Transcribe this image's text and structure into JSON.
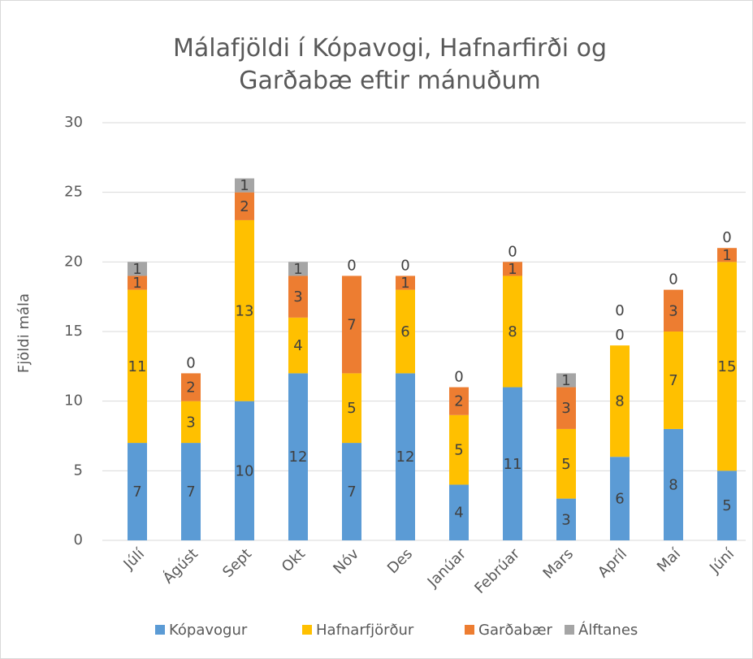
{
  "chart_data": {
    "type": "stacked_bar",
    "title": "Málafjöldi í Kópavogi, Hafnarfirði og Garðabæ eftir mánuðum",
    "y_label": "Fjöldi mála",
    "categories": [
      "Júlí",
      "Ágúst",
      "Sept",
      "Okt",
      "Nóv",
      "Des",
      "Janúar",
      "Febrúar",
      "Mars",
      "Apríl",
      "Maí",
      "Júní"
    ],
    "series": [
      {
        "name": "Kópavogur",
        "color": "#5b9bd5",
        "values": [
          7,
          7,
          10,
          12,
          7,
          12,
          4,
          11,
          3,
          6,
          8,
          5
        ]
      },
      {
        "name": "Hafnarfjörður",
        "color": "#ffc000",
        "values": [
          11,
          3,
          13,
          4,
          5,
          6,
          5,
          8,
          5,
          8,
          7,
          15
        ]
      },
      {
        "name": "Garðabær",
        "color": "#ed7d31",
        "values": [
          1,
          2,
          2,
          3,
          7,
          1,
          2,
          1,
          3,
          0,
          3,
          1
        ]
      },
      {
        "name": "Álftanes",
        "color": "#a5a5a5",
        "values": [
          1,
          0,
          1,
          1,
          0,
          0,
          0,
          0,
          1,
          0,
          0,
          0
        ]
      }
    ],
    "ylim": [
      0,
      30
    ],
    "yticks": [
      0,
      5,
      10,
      15,
      20,
      25,
      30
    ],
    "grid": true,
    "legend": "bottom"
  }
}
